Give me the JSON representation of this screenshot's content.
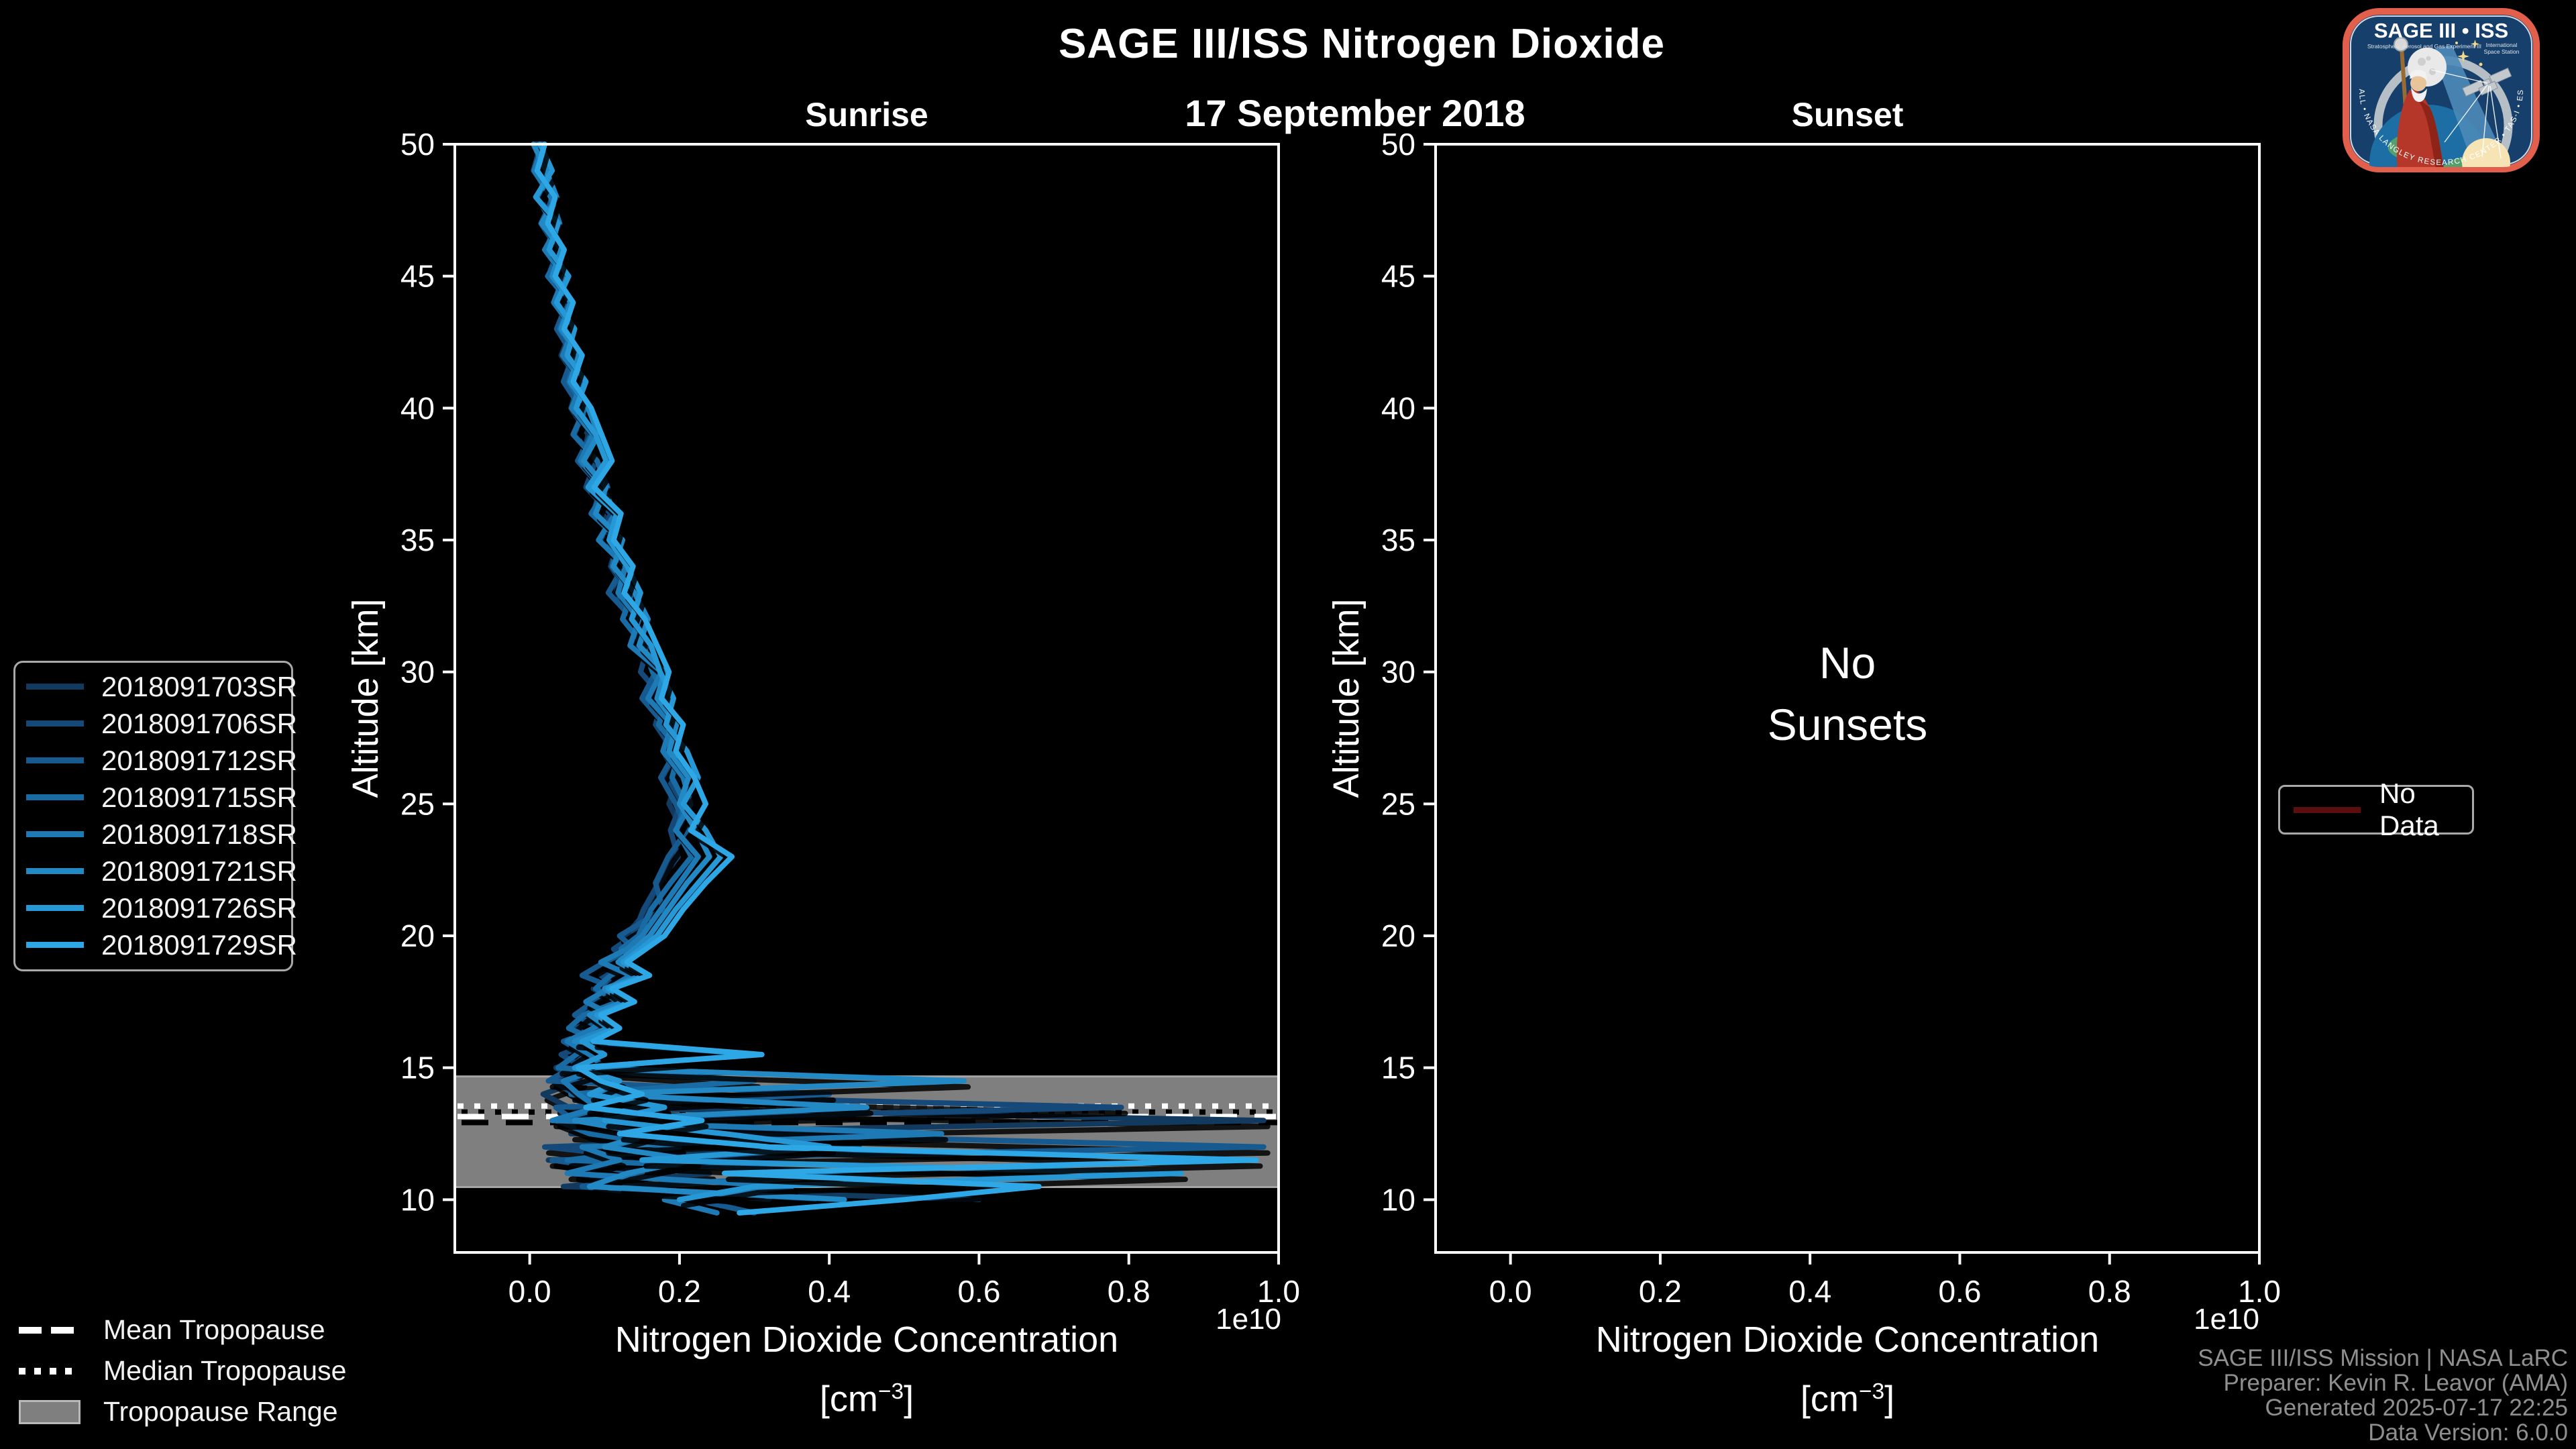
{
  "header": {
    "title": "SAGE III/ISS Nitrogen Dioxide",
    "date": "17 September 2018",
    "sunrise_panel_title": "Sunrise",
    "sunset_panel_title": "Sunset"
  },
  "sunset_panel": {
    "no_data_line1": "No",
    "no_data_line2": "Sunsets"
  },
  "axis_labels": {
    "x_line1": "Nitrogen Dioxide Concentration",
    "units_prefix": "[cm",
    "units_sup": "−3",
    "units_suffix": "]",
    "y_label": "Altitude [km]",
    "offset_text": "1e10"
  },
  "tropopause_legend": {
    "mean_label": "Mean Tropopause",
    "median_label": "Median Tropopause",
    "range_label": "Tropopause Range"
  },
  "no_data_legend": {
    "label": "No Data",
    "color": "#5c0e0e"
  },
  "credits": {
    "line1": "SAGE III/ISS Mission | NASA LaRC",
    "line2": "Preparer: Kevin R. Leavor (AMA)",
    "line3": "Generated 2025-07-17 22:25",
    "line4": "Data Version: 6.0.0"
  },
  "logo": {
    "title": "SAGE III • ISS",
    "subtitle_left": "Stratospheric Aerosol and Gas Experiment III",
    "subtitle_right1": "International",
    "subtitle_right2": "Space Station",
    "ring_text": "BALL • NASA LANGLEY RESEARCH CENTER • TAS-I • ESA"
  },
  "chart_data": {
    "type": "line",
    "title": "SAGE III/ISS Nitrogen Dioxide",
    "subtitle": "17 September 2018",
    "x_axis": {
      "label": "Nitrogen Dioxide Concentration [cm^-3]",
      "ticks": [
        0.0,
        0.2,
        0.4,
        0.6,
        0.8,
        1.0
      ],
      "tick_labels": [
        "0.0",
        "0.2",
        "0.4",
        "0.6",
        "0.8",
        "1.0"
      ],
      "offset_text": "1e10",
      "range": [
        -0.1,
        1.0
      ],
      "scale_factor": 10000000000.0
    },
    "y_axis": {
      "label": "Altitude [km]",
      "ticks": [
        10,
        15,
        20,
        25,
        30,
        35,
        40,
        45,
        50
      ],
      "tick_labels": [
        "10",
        "15",
        "20",
        "25",
        "30",
        "35",
        "40",
        "45",
        "50"
      ],
      "range": [
        8,
        50
      ]
    },
    "tropopause": {
      "mean_km": 13.15,
      "median_km": 13.55,
      "range_km": [
        10.48,
        14.67
      ],
      "band_color": "#7f7f7f"
    },
    "altitudes_km": [
      50,
      49,
      48,
      47,
      46,
      45,
      44,
      43,
      42,
      41,
      40,
      39,
      38,
      37,
      36,
      35,
      34,
      33,
      32,
      31,
      30,
      29,
      28,
      27,
      26,
      25,
      24,
      23,
      22,
      21,
      20,
      19.5,
      19,
      18.5,
      18,
      17.5,
      17,
      16.5,
      16,
      15.5,
      15,
      14.5,
      14,
      13.5,
      13,
      12.5,
      12,
      11.5,
      11,
      10.5,
      10,
      9.5
    ],
    "sunrise_series": [
      {
        "label": "2018091703SR",
        "color": "#123A5F",
        "values": [
          0.01,
          0.028,
          0.012,
          0.034,
          0.022,
          0.048,
          0.035,
          0.056,
          0.042,
          0.066,
          0.055,
          0.078,
          0.07,
          0.092,
          0.098,
          0.118,
          0.108,
          0.132,
          0.15,
          0.142,
          0.172,
          0.162,
          0.188,
          0.178,
          0.198,
          0.186,
          0.204,
          0.192,
          0.176,
          0.158,
          0.128,
          0.148,
          0.105,
          0.128,
          0.085,
          0.112,
          0.07,
          0.098,
          0.055,
          0.085,
          0.035,
          0.068,
          0.018,
          0.052,
          0.98,
          0.055,
          0.44,
          0.025,
          0.24,
          0.045,
          0.6,
          null
        ]
      },
      {
        "label": "2018091706SR",
        "color": "#14497A",
        "values": [
          0.015,
          0.005,
          0.03,
          0.018,
          0.04,
          0.028,
          0.052,
          0.038,
          0.062,
          0.048,
          0.072,
          0.06,
          0.088,
          0.075,
          0.108,
          0.095,
          0.125,
          0.115,
          0.142,
          0.158,
          0.148,
          0.178,
          0.168,
          0.192,
          0.182,
          0.202,
          0.188,
          0.198,
          0.172,
          0.152,
          0.138,
          0.112,
          0.132,
          0.095,
          0.118,
          0.078,
          0.102,
          0.062,
          0.088,
          0.042,
          0.072,
          0.03,
          0.06,
          0.79,
          0.04,
          0.5,
          0.02,
          0.18,
          0.06,
          0.15,
          0.38,
          null
        ]
      },
      {
        "label": "2018091712SR",
        "color": "#165A90",
        "values": [
          0.008,
          0.02,
          0.032,
          0.015,
          0.038,
          0.025,
          0.05,
          0.036,
          0.058,
          0.045,
          0.068,
          0.082,
          0.064,
          0.095,
          0.085,
          0.112,
          0.125,
          0.105,
          0.138,
          0.155,
          0.168,
          0.15,
          0.18,
          0.195,
          0.175,
          0.195,
          0.21,
          0.185,
          0.168,
          0.178,
          0.12,
          0.14,
          0.1,
          0.07,
          0.115,
          0.085,
          0.06,
          0.095,
          0.045,
          0.075,
          0.055,
          0.025,
          0.4,
          0.035,
          0.06,
          0.25,
          0.98,
          0.03,
          0.15,
          0.07,
          0.22,
          0.3
        ]
      },
      {
        "label": "2018091715SR",
        "color": "#196BA4",
        "values": [
          0.012,
          0.026,
          0.01,
          0.03,
          0.044,
          0.024,
          0.054,
          0.04,
          0.064,
          0.052,
          0.074,
          0.058,
          0.09,
          0.104,
          0.082,
          0.12,
          0.11,
          0.136,
          0.124,
          0.152,
          0.164,
          0.184,
          0.172,
          0.2,
          0.19,
          0.208,
          0.196,
          0.216,
          0.188,
          0.162,
          0.145,
          0.122,
          0.142,
          0.108,
          0.088,
          0.118,
          0.072,
          0.052,
          0.092,
          0.062,
          0.038,
          0.3,
          0.055,
          0.15,
          0.035,
          0.08,
          0.2,
          0.05,
          0.46,
          0.12,
          0.32,
          null
        ]
      },
      {
        "label": "2018091718SR",
        "color": "#1D7AB5",
        "values": [
          0.018,
          0.006,
          0.028,
          0.04,
          0.02,
          0.046,
          0.032,
          0.058,
          0.044,
          0.07,
          0.056,
          0.084,
          0.068,
          0.098,
          0.114,
          0.092,
          0.128,
          0.118,
          0.146,
          0.134,
          0.176,
          0.158,
          0.19,
          0.178,
          0.205,
          0.215,
          0.195,
          0.225,
          0.2,
          0.175,
          0.15,
          0.13,
          0.095,
          0.135,
          0.105,
          0.075,
          0.11,
          0.085,
          0.05,
          0.08,
          0.1,
          0.045,
          0.065,
          0.09,
          0.03,
          0.55,
          0.07,
          0.12,
          0.05,
          0.35,
          0.18,
          0.25
        ]
      },
      {
        "label": "2018091721SR",
        "color": "#2289C5",
        "values": [
          0.005,
          0.022,
          0.036,
          0.016,
          0.042,
          0.03,
          0.055,
          0.042,
          0.066,
          0.054,
          0.078,
          0.092,
          0.072,
          0.102,
          0.088,
          0.124,
          0.112,
          0.14,
          0.158,
          0.146,
          0.18,
          0.17,
          0.196,
          0.186,
          0.212,
          0.2,
          0.222,
          0.24,
          0.21,
          0.185,
          0.16,
          0.14,
          0.118,
          0.15,
          0.1,
          0.125,
          0.08,
          0.105,
          0.06,
          0.3,
          0.07,
          0.58,
          0.09,
          0.45,
          0.06,
          0.16,
          0.1,
          0.22,
          0.13,
          0.08,
          0.42,
          null
        ]
      },
      {
        "label": "2018091726SR",
        "color": "#2798D6",
        "values": [
          0.014,
          0.03,
          0.008,
          0.038,
          0.026,
          0.052,
          0.036,
          0.06,
          0.05,
          0.075,
          0.062,
          0.088,
          0.102,
          0.078,
          0.116,
          0.106,
          0.13,
          0.148,
          0.136,
          0.162,
          0.174,
          0.192,
          0.182,
          0.21,
          0.225,
          0.205,
          0.235,
          0.255,
          0.225,
          0.195,
          0.17,
          0.148,
          0.125,
          0.155,
          0.105,
          0.135,
          0.09,
          0.115,
          0.07,
          0.1,
          0.06,
          0.12,
          0.08,
          0.18,
          0.1,
          0.26,
          0.4,
          0.15,
          0.87,
          0.3,
          0.2,
          null
        ]
      },
      {
        "label": "2018091729SR",
        "color": "#2DA7E5",
        "values": [
          0.02,
          0.01,
          0.034,
          0.024,
          0.046,
          0.034,
          0.058,
          0.046,
          0.07,
          0.058,
          0.082,
          0.096,
          0.11,
          0.086,
          0.122,
          0.112,
          0.138,
          0.126,
          0.154,
          0.17,
          0.186,
          0.176,
          0.205,
          0.195,
          0.22,
          0.235,
          0.215,
          0.27,
          0.235,
          0.205,
          0.18,
          0.155,
          0.13,
          0.16,
          0.11,
          0.14,
          0.095,
          0.12,
          0.085,
          0.31,
          0.065,
          0.095,
          0.15,
          0.075,
          0.23,
          0.12,
          0.32,
          0.97,
          0.26,
          0.68,
          0.5,
          0.28
        ]
      }
    ],
    "sunset_series": [],
    "layout_hints": {
      "grid": false,
      "background": "#000000",
      "panels": [
        "Sunrise",
        "Sunset"
      ],
      "event_legend_position": "left",
      "tropopause_legend_position": "bottom-left"
    }
  }
}
